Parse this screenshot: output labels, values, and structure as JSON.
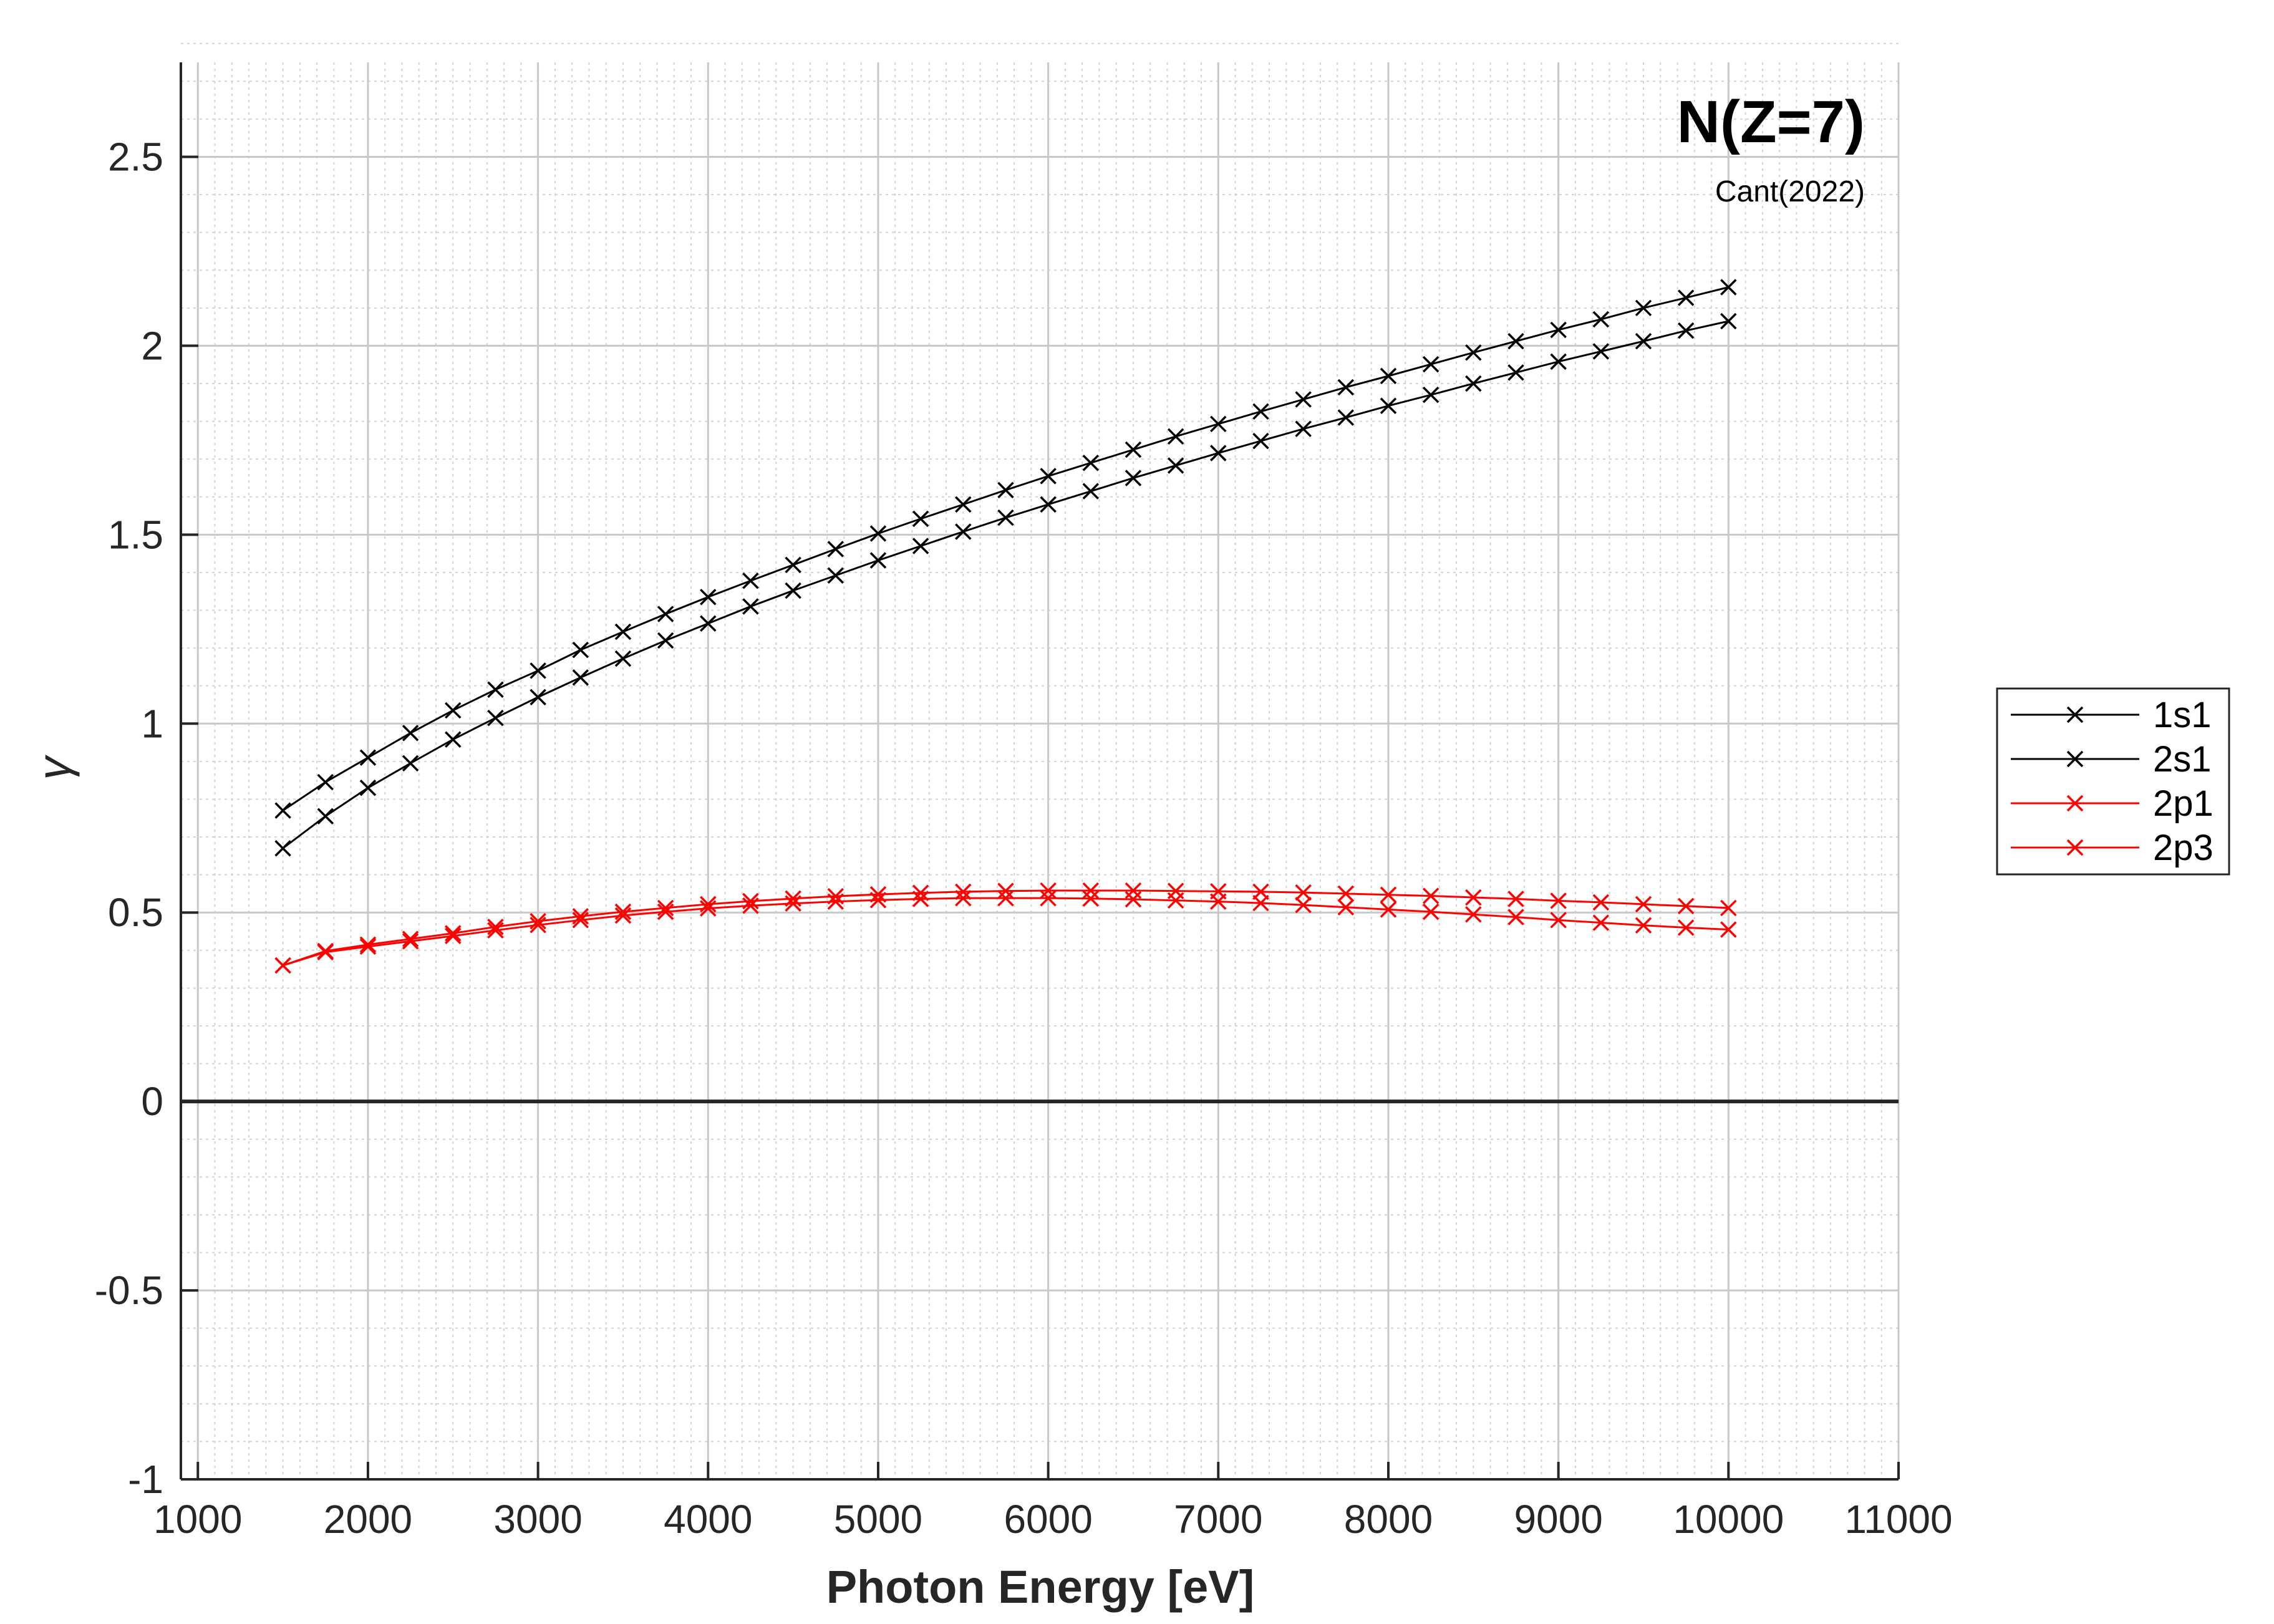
{
  "chart_data": {
    "type": "line",
    "title": "N(Z=7)",
    "subtitle": "Cant(2022)",
    "xlabel": "Photon Energy [eV]",
    "ylabel": "γ",
    "xlim": [
      900,
      11000
    ],
    "ylim": [
      -1,
      2.75
    ],
    "xticks": [
      1000,
      2000,
      3000,
      4000,
      5000,
      6000,
      7000,
      8000,
      9000,
      10000,
      11000
    ],
    "xtick_labels": [
      "1000",
      "2000",
      "3000",
      "4000",
      "5000",
      "6000",
      "7000",
      "8000",
      "9000",
      "10000",
      "11000"
    ],
    "yticks": [
      -1,
      -0.5,
      0,
      0.5,
      1,
      1.5,
      2,
      2.5
    ],
    "ytick_labels": [
      "-1",
      "-0.5",
      "0",
      "0.5",
      "1",
      "1.5",
      "2",
      "2.5"
    ],
    "grid": true,
    "minor_grid": true,
    "legend_position": "outside-right",
    "marker": "x",
    "x": [
      1500,
      1750,
      2000,
      2250,
      2500,
      2750,
      3000,
      3250,
      3500,
      3750,
      4000,
      4250,
      4500,
      4750,
      5000,
      5250,
      5500,
      5750,
      6000,
      6250,
      6500,
      6750,
      7000,
      7250,
      7500,
      7750,
      8000,
      8250,
      8500,
      8750,
      9000,
      9250,
      9500,
      9750,
      10000
    ],
    "series": [
      {
        "name": "1s1",
        "color": "#000000",
        "values": [
          0.77,
          0.845,
          0.91,
          0.975,
          1.035,
          1.09,
          1.14,
          1.195,
          1.243,
          1.29,
          1.335,
          1.378,
          1.42,
          1.462,
          1.503,
          1.542,
          1.58,
          1.618,
          1.655,
          1.69,
          1.725,
          1.76,
          1.793,
          1.826,
          1.858,
          1.89,
          1.92,
          1.951,
          1.982,
          2.012,
          2.042,
          2.07,
          2.1,
          2.127,
          2.155
        ]
      },
      {
        "name": "2s1",
        "color": "#000000",
        "values": [
          0.67,
          0.755,
          0.83,
          0.895,
          0.958,
          1.015,
          1.07,
          1.122,
          1.172,
          1.22,
          1.265,
          1.31,
          1.352,
          1.392,
          1.432,
          1.47,
          1.508,
          1.545,
          1.58,
          1.615,
          1.65,
          1.683,
          1.716,
          1.748,
          1.78,
          1.81,
          1.841,
          1.87,
          1.9,
          1.929,
          1.958,
          1.985,
          2.012,
          2.04,
          2.065
        ]
      },
      {
        "name": "2p1",
        "color": "#ff0000",
        "values": [
          0.36,
          0.398,
          0.415,
          0.43,
          0.445,
          0.462,
          0.477,
          0.49,
          0.502,
          0.512,
          0.522,
          0.53,
          0.537,
          0.543,
          0.548,
          0.552,
          0.555,
          0.557,
          0.558,
          0.558,
          0.558,
          0.557,
          0.556,
          0.555,
          0.553,
          0.55,
          0.547,
          0.544,
          0.54,
          0.536,
          0.531,
          0.527,
          0.522,
          0.517,
          0.512
        ]
      },
      {
        "name": "2p3",
        "color": "#ff0000",
        "values": [
          0.36,
          0.395,
          0.41,
          0.424,
          0.438,
          0.453,
          0.467,
          0.48,
          0.492,
          0.502,
          0.511,
          0.518,
          0.524,
          0.529,
          0.533,
          0.536,
          0.538,
          0.538,
          0.538,
          0.537,
          0.535,
          0.532,
          0.529,
          0.525,
          0.52,
          0.514,
          0.508,
          0.502,
          0.495,
          0.488,
          0.48,
          0.473,
          0.466,
          0.46,
          0.455
        ]
      }
    ]
  }
}
